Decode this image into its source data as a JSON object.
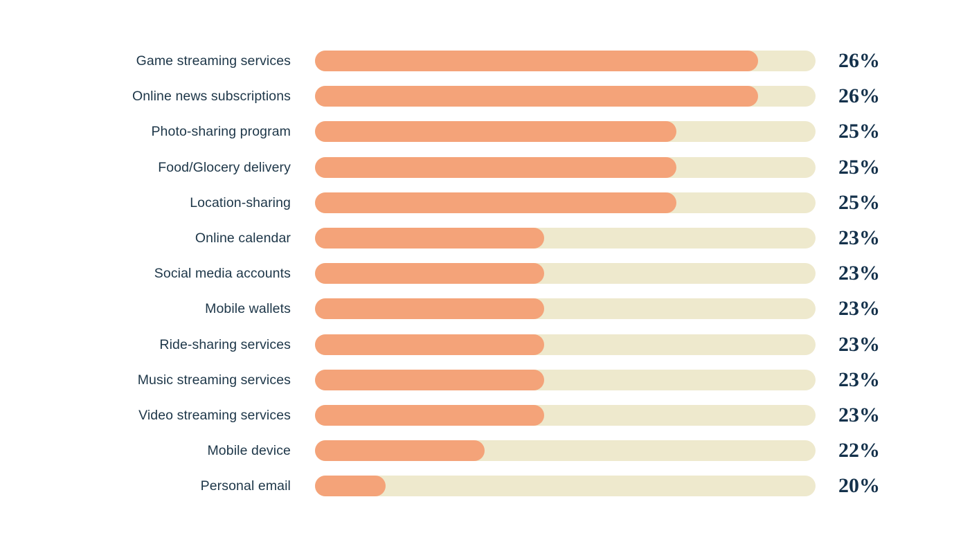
{
  "chart_data": {
    "type": "bar",
    "orientation": "horizontal",
    "title": "",
    "xlabel": "",
    "ylabel": "",
    "legend": "none",
    "grid": false,
    "categories": [
      "Game streaming services",
      "Online news subscriptions",
      "Photo-sharing program",
      "Food/Glocery delivery",
      "Location-sharing",
      "Online calendar",
      "Social media accounts",
      "Mobile wallets",
      "Ride-sharing services",
      "Music streaming services",
      "Video streaming services",
      "Mobile device",
      "Personal email"
    ],
    "values": [
      26,
      26,
      25,
      25,
      25,
      23,
      23,
      23,
      23,
      23,
      23,
      22,
      20
    ],
    "unit": "%",
    "colors": {
      "bar_fill": "#F4A379",
      "bar_track": "#EEE9CD",
      "category_text": "#1D3648",
      "value_text": "#14314B",
      "background": "#FFFFFF"
    },
    "rows": [
      {
        "label": "Game streaming services",
        "value": 26,
        "value_label": "26%",
        "fill_pct": 88.5
      },
      {
        "label": "Online news subscriptions",
        "value": 26,
        "value_label": "26%",
        "fill_pct": 88.5
      },
      {
        "label": "Photo-sharing program",
        "value": 25,
        "value_label": "25%",
        "fill_pct": 72.2
      },
      {
        "label": "Food/Glocery delivery",
        "value": 25,
        "value_label": "25%",
        "fill_pct": 72.2
      },
      {
        "label": "Location-sharing",
        "value": 25,
        "value_label": "25%",
        "fill_pct": 72.2
      },
      {
        "label": "Online calendar",
        "value": 23,
        "value_label": "23%",
        "fill_pct": 45.8
      },
      {
        "label": "Social media accounts",
        "value": 23,
        "value_label": "23%",
        "fill_pct": 45.8
      },
      {
        "label": "Mobile wallets",
        "value": 23,
        "value_label": "23%",
        "fill_pct": 45.8
      },
      {
        "label": "Ride-sharing services",
        "value": 23,
        "value_label": "23%",
        "fill_pct": 45.8
      },
      {
        "label": "Music streaming services",
        "value": 23,
        "value_label": "23%",
        "fill_pct": 45.8
      },
      {
        "label": "Video streaming services",
        "value": 23,
        "value_label": "23%",
        "fill_pct": 45.8
      },
      {
        "label": "Mobile device",
        "value": 22,
        "value_label": "22%",
        "fill_pct": 33.9
      },
      {
        "label": "Personal email",
        "value": 20,
        "value_label": "20%",
        "fill_pct": 14.1
      }
    ]
  }
}
